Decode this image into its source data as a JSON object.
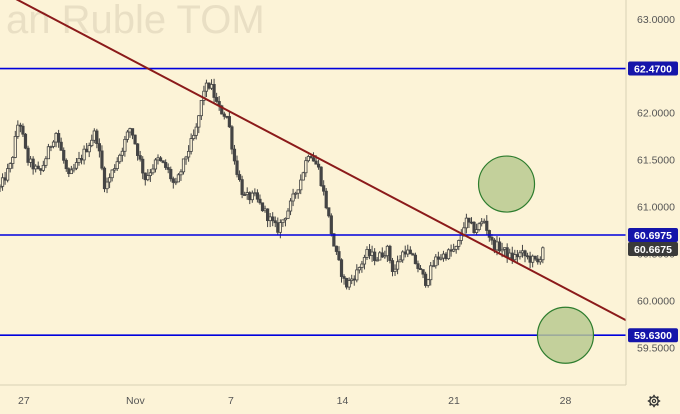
{
  "watermark": "an Ruble TOM",
  "settings_icon": "gear-icon",
  "colors": {
    "background": "#fcf3d7",
    "candle": "#444444",
    "horizontal_line": "#0000dd",
    "trend_line": "#8b1a1a",
    "circle_fill": "#b9c990",
    "circle_stroke": "#2e7d2e",
    "badge": "#1515aa",
    "axis_text": "#555555"
  },
  "chart_data": {
    "type": "candlestick",
    "title": "",
    "xlabel": "",
    "ylabel": "",
    "y_axis_side": "right",
    "ylim": [
      59.1,
      63.2
    ],
    "y_ticks": [
      "63.0000",
      "62.0000",
      "61.5000",
      "61.0000",
      "60.5000",
      "60.0000",
      "59.5000"
    ],
    "x_ticks": [
      "27",
      "Nov",
      "7",
      "14",
      "21",
      "28"
    ],
    "x_tick_positions": [
      -7,
      0,
      6,
      13,
      20,
      27
    ],
    "x_range": [
      -8.5,
      30.8
    ],
    "x_unit": "days since Nov 1",
    "horizontal_lines": [
      {
        "value": 62.47,
        "label": "62.4700"
      },
      {
        "value": 60.6975,
        "label": "60.6975"
      },
      {
        "value": 59.63,
        "label": "59.6300"
      }
    ],
    "current_price": {
      "value": 60.6675,
      "label": "60.6675"
    },
    "trend_line": {
      "from": {
        "x": -8.5,
        "y": 63.3
      },
      "to": {
        "x": 30.8,
        "y": 59.79
      }
    },
    "target_circles": [
      {
        "x": 23.3,
        "y": 61.24
      },
      {
        "x": 27.0,
        "y": 59.63
      }
    ],
    "price_path": [
      [
        -8.5,
        61.2
      ],
      [
        -7.8,
        61.45
      ],
      [
        -7.3,
        61.95
      ],
      [
        -6.8,
        61.5
      ],
      [
        -6.0,
        61.35
      ],
      [
        -5.0,
        61.8
      ],
      [
        -4.2,
        61.3
      ],
      [
        -3.3,
        61.55
      ],
      [
        -2.5,
        61.8
      ],
      [
        -1.9,
        61.2
      ],
      [
        -1.0,
        61.55
      ],
      [
        -0.3,
        61.85
      ],
      [
        0.6,
        61.3
      ],
      [
        1.4,
        61.5
      ],
      [
        2.0,
        61.4
      ],
      [
        2.5,
        61.2
      ],
      [
        3.2,
        61.55
      ],
      [
        3.8,
        61.8
      ],
      [
        4.3,
        62.25
      ],
      [
        4.7,
        62.3
      ],
      [
        5.2,
        62.05
      ],
      [
        5.8,
        61.95
      ],
      [
        6.2,
        61.5
      ],
      [
        6.8,
        61.1
      ],
      [
        7.5,
        61.1
      ],
      [
        8.3,
        60.9
      ],
      [
        8.9,
        60.75
      ],
      [
        9.7,
        61.0
      ],
      [
        10.4,
        61.3
      ],
      [
        10.9,
        61.6
      ],
      [
        11.5,
        61.4
      ],
      [
        12.0,
        61.0
      ],
      [
        12.5,
        60.55
      ],
      [
        13.2,
        60.15
      ],
      [
        13.9,
        60.3
      ],
      [
        14.5,
        60.5
      ],
      [
        15.2,
        60.45
      ],
      [
        15.8,
        60.55
      ],
      [
        16.2,
        60.3
      ],
      [
        16.9,
        60.55
      ],
      [
        17.6,
        60.4
      ],
      [
        18.2,
        60.2
      ],
      [
        18.9,
        60.45
      ],
      [
        19.6,
        60.5
      ],
      [
        20.2,
        60.55
      ],
      [
        20.7,
        60.85
      ],
      [
        21.3,
        60.75
      ],
      [
        21.9,
        60.85
      ],
      [
        22.4,
        60.6
      ],
      [
        23.0,
        60.55
      ],
      [
        23.6,
        60.45
      ],
      [
        24.2,
        60.5
      ],
      [
        24.7,
        60.45
      ],
      [
        25.3,
        60.4
      ],
      [
        25.7,
        60.65
      ]
    ]
  }
}
